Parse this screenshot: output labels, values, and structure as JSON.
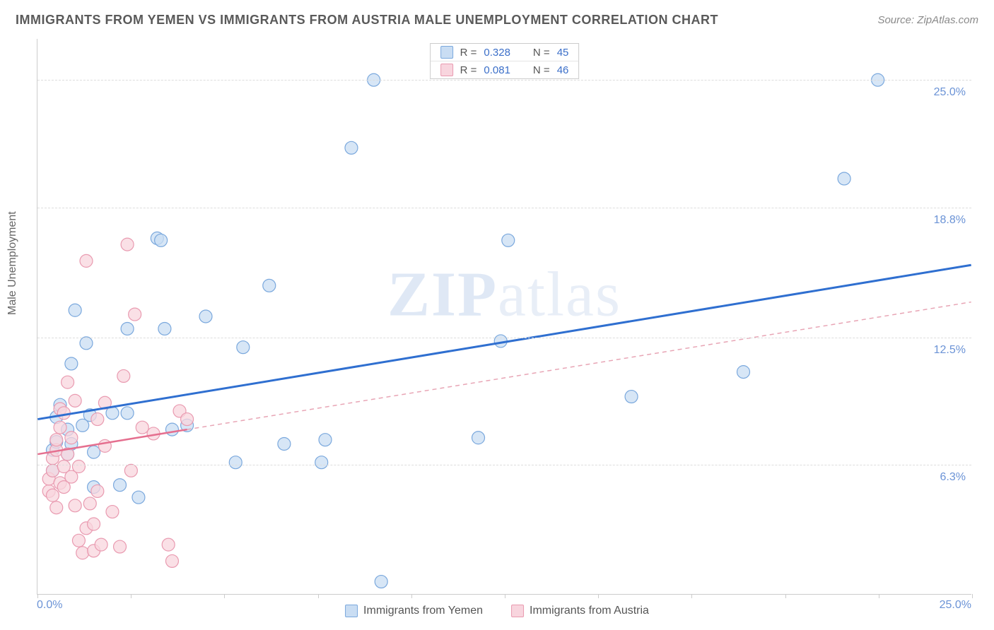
{
  "title": "IMMIGRANTS FROM YEMEN VS IMMIGRANTS FROM AUSTRIA MALE UNEMPLOYMENT CORRELATION CHART",
  "source": "Source: ZipAtlas.com",
  "y_axis_title": "Male Unemployment",
  "watermark_zip": "ZIP",
  "watermark_atlas": "atlas",
  "chart": {
    "type": "scatter",
    "xlim": [
      0,
      25
    ],
    "ylim": [
      0,
      27
    ],
    "x_ticks": [
      0,
      2.5,
      5,
      7.5,
      10,
      12.5,
      15,
      17.5,
      20,
      22.5,
      25
    ],
    "y_gridlines": [
      6.3,
      12.5,
      18.8,
      25.0
    ],
    "y_tick_labels": [
      "6.3%",
      "12.5%",
      "18.8%",
      "25.0%"
    ],
    "x_min_label": "0.0%",
    "x_max_label": "25.0%",
    "background": "#ffffff",
    "grid_color": "#dddddd",
    "axis_color": "#cccccc",
    "axis_label_color": "#6b93d6",
    "marker_radius": 9,
    "marker_stroke_width": 1.2,
    "series": [
      {
        "name": "Immigrants from Yemen",
        "key": "yemen",
        "fill": "#c9ddf3",
        "stroke": "#7aa8dd",
        "swatch_fill": "#c9ddf3",
        "swatch_stroke": "#7aa8dd",
        "R": "0.328",
        "N": "45",
        "trend": {
          "x1": 0,
          "y1": 8.5,
          "x2": 25,
          "y2": 16.0,
          "stroke": "#2f6fd0",
          "width": 3,
          "dash": "none"
        },
        "points": [
          [
            0.4,
            6.0
          ],
          [
            0.4,
            7.0
          ],
          [
            0.5,
            7.4
          ],
          [
            0.5,
            8.6
          ],
          [
            0.6,
            9.2
          ],
          [
            0.8,
            6.8
          ],
          [
            0.8,
            8.0
          ],
          [
            0.9,
            7.3
          ],
          [
            0.9,
            11.2
          ],
          [
            1.0,
            13.8
          ],
          [
            1.2,
            8.2
          ],
          [
            1.3,
            12.2
          ],
          [
            1.4,
            8.7
          ],
          [
            1.5,
            6.9
          ],
          [
            1.5,
            5.2
          ],
          [
            2.0,
            8.8
          ],
          [
            2.2,
            5.3
          ],
          [
            2.4,
            12.9
          ],
          [
            2.4,
            8.8
          ],
          [
            3.2,
            17.3
          ],
          [
            3.3,
            17.2
          ],
          [
            3.4,
            12.9
          ],
          [
            3.6,
            8.0
          ],
          [
            4.0,
            8.2
          ],
          [
            4.5,
            13.5
          ],
          [
            5.3,
            6.4
          ],
          [
            5.5,
            12.0
          ],
          [
            6.2,
            15.0
          ],
          [
            6.6,
            7.3
          ],
          [
            7.6,
            6.4
          ],
          [
            7.7,
            7.5
          ],
          [
            8.4,
            21.7
          ],
          [
            9.0,
            25.0
          ],
          [
            11.8,
            7.6
          ],
          [
            12.4,
            12.3
          ],
          [
            12.6,
            17.2
          ],
          [
            15.9,
            9.6
          ],
          [
            18.9,
            10.8
          ],
          [
            21.6,
            20.2
          ],
          [
            22.5,
            25.0
          ],
          [
            9.2,
            0.6
          ],
          [
            2.7,
            4.7
          ]
        ]
      },
      {
        "name": "Immigrants from Austria",
        "key": "austria",
        "fill": "#f8d5de",
        "stroke": "#e99ab0",
        "swatch_fill": "#f8d5de",
        "swatch_stroke": "#e99ab0",
        "R": "0.081",
        "N": "46",
        "trend_solid": {
          "x1": 0,
          "y1": 6.8,
          "x2": 4.0,
          "y2": 8.0,
          "stroke": "#e56f8f",
          "width": 2.5
        },
        "trend_dash": {
          "x1": 4.0,
          "y1": 8.0,
          "x2": 25,
          "y2": 14.2,
          "stroke": "#e8a5b5",
          "width": 1.5,
          "dash": "6,5"
        },
        "points": [
          [
            0.3,
            5.0
          ],
          [
            0.3,
            5.6
          ],
          [
            0.4,
            4.8
          ],
          [
            0.4,
            6.0
          ],
          [
            0.4,
            6.6
          ],
          [
            0.5,
            4.2
          ],
          [
            0.5,
            7.0
          ],
          [
            0.5,
            7.5
          ],
          [
            0.6,
            5.4
          ],
          [
            0.6,
            8.1
          ],
          [
            0.6,
            9.0
          ],
          [
            0.7,
            5.2
          ],
          [
            0.7,
            6.2
          ],
          [
            0.7,
            8.8
          ],
          [
            0.8,
            6.8
          ],
          [
            0.8,
            10.3
          ],
          [
            0.9,
            5.7
          ],
          [
            0.9,
            7.6
          ],
          [
            1.0,
            4.3
          ],
          [
            1.0,
            9.4
          ],
          [
            1.1,
            6.2
          ],
          [
            1.1,
            2.6
          ],
          [
            1.2,
            2.0
          ],
          [
            1.3,
            3.2
          ],
          [
            1.3,
            16.2
          ],
          [
            1.4,
            4.4
          ],
          [
            1.5,
            2.1
          ],
          [
            1.5,
            3.4
          ],
          [
            1.6,
            5.0
          ],
          [
            1.6,
            8.5
          ],
          [
            1.7,
            2.4
          ],
          [
            1.8,
            7.2
          ],
          [
            1.8,
            9.3
          ],
          [
            2.0,
            4.0
          ],
          [
            2.2,
            2.3
          ],
          [
            2.3,
            10.6
          ],
          [
            2.4,
            17.0
          ],
          [
            2.5,
            6.0
          ],
          [
            2.6,
            13.6
          ],
          [
            2.8,
            8.1
          ],
          [
            3.1,
            7.8
          ],
          [
            3.5,
            2.4
          ],
          [
            3.6,
            1.6
          ],
          [
            3.8,
            8.9
          ],
          [
            4.0,
            8.5
          ]
        ]
      }
    ]
  },
  "rn_labels": {
    "R": "R =",
    "N": "N ="
  },
  "legend_items": [
    {
      "label": "Immigrants from Yemen",
      "fill": "#c9ddf3",
      "stroke": "#7aa8dd"
    },
    {
      "label": "Immigrants from Austria",
      "fill": "#f8d5de",
      "stroke": "#e99ab0"
    }
  ]
}
